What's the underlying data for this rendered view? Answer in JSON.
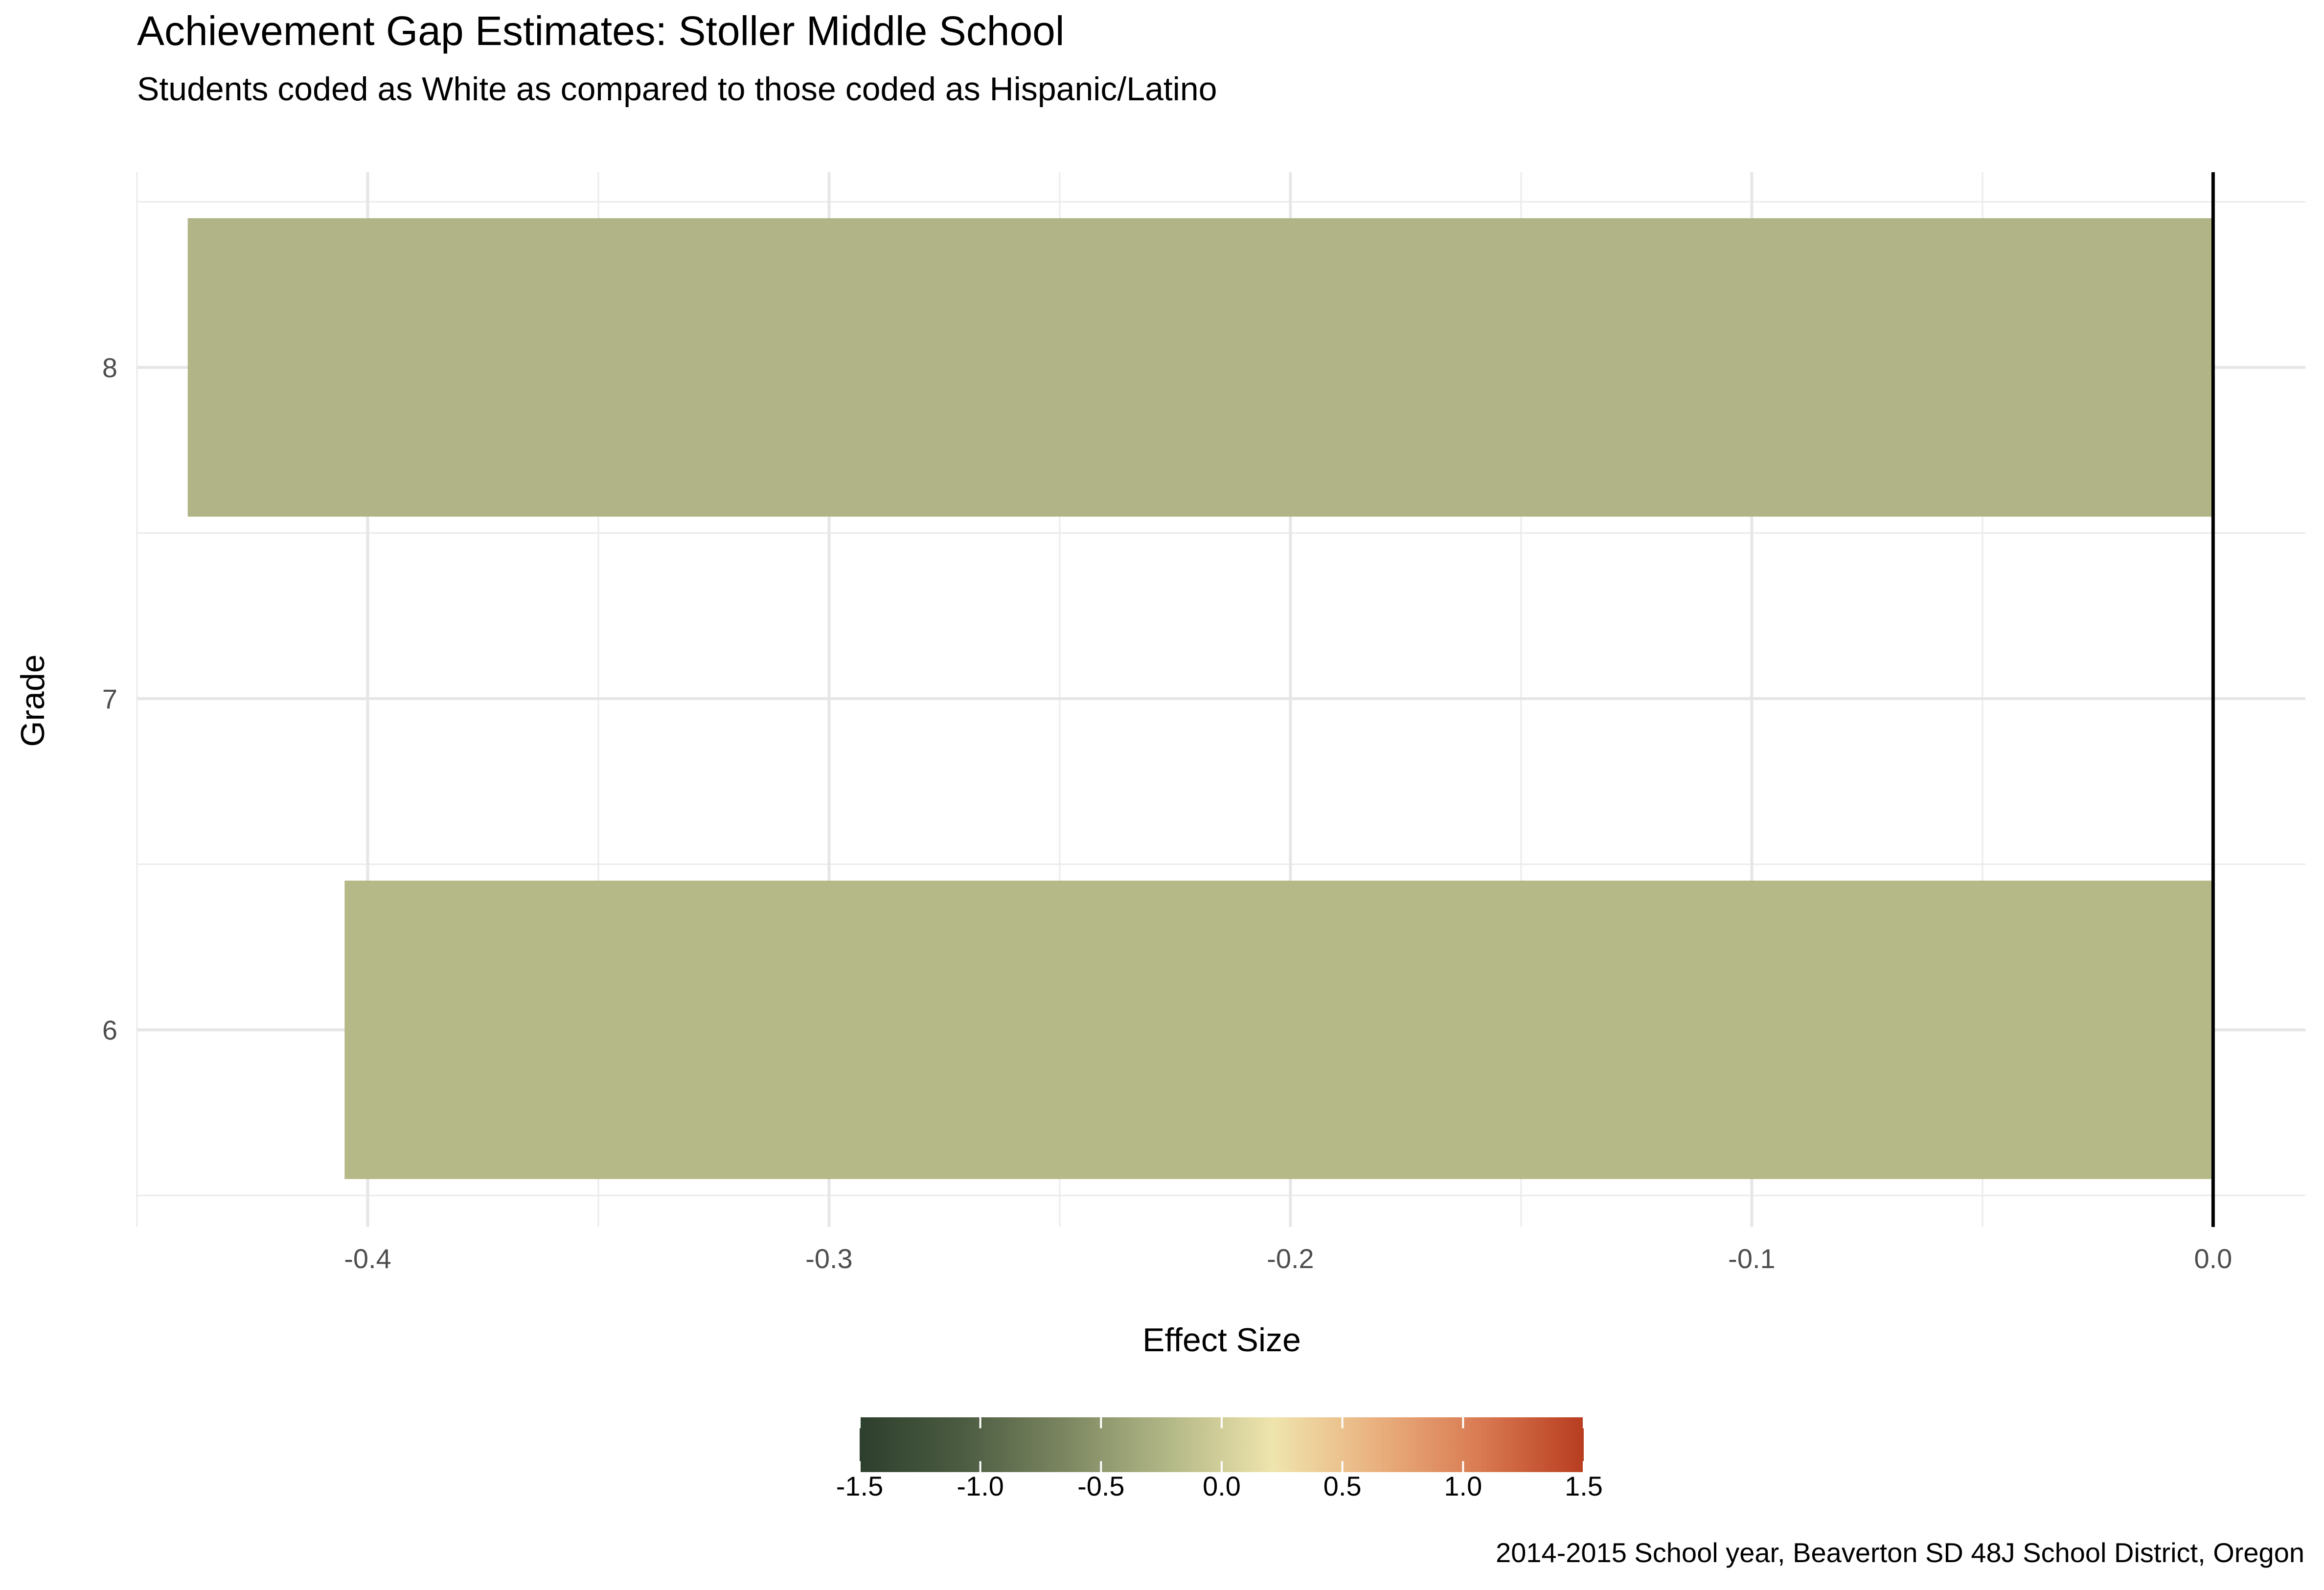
{
  "chart_data": {
    "type": "bar",
    "orientation": "horizontal",
    "title": "Achievement Gap Estimates: Stoller Middle School",
    "subtitle": "Students coded as White as compared to those coded as Hispanic/Latino",
    "xlabel": "Effect Size",
    "ylabel": "Grade",
    "caption": "2014-2015 School year, Beaverton SD 48J School District, Oregon",
    "categories": [
      "6",
      "7",
      "8"
    ],
    "values": [
      -0.405,
      0.0,
      -0.439
    ],
    "bar_colors": [
      "#b4b987",
      "#f2e7b0",
      "#b0b486"
    ],
    "xlim": [
      -0.45,
      0.02
    ],
    "x_ticks": [
      -0.4,
      -0.3,
      -0.2,
      -0.1,
      0.0
    ],
    "x_tick_labels": [
      "-0.4",
      "-0.3",
      "-0.2",
      "-0.1",
      "0.0"
    ],
    "y_tick_labels": [
      "6",
      "7",
      "8"
    ],
    "grid": true,
    "reference_line": 0.0,
    "legend": {
      "type": "colorbar",
      "placement": "bottom",
      "range": [
        -1.5,
        1.5
      ],
      "ticks": [
        -1.5,
        -1.0,
        -0.5,
        0.0,
        0.5,
        1.0,
        1.5
      ],
      "tick_labels": [
        "-1.5",
        "-1.0",
        "-0.5",
        "0.0",
        "0.5",
        "1.0",
        "1.5"
      ],
      "colors": [
        "#2d3f2d",
        "#4c5c42",
        "#7c8761",
        "#b3b887",
        "#efe4ad",
        "#e9b07e",
        "#d97a52",
        "#b83d20"
      ]
    }
  }
}
